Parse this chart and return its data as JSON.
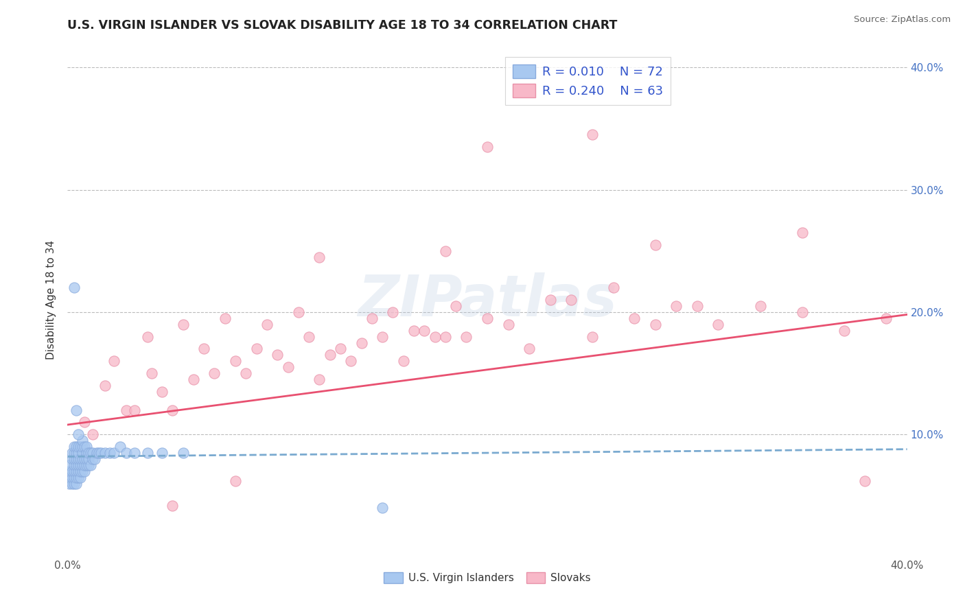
{
  "title": "U.S. VIRGIN ISLANDER VS SLOVAK DISABILITY AGE 18 TO 34 CORRELATION CHART",
  "source": "Source: ZipAtlas.com",
  "ylabel": "Disability Age 18 to 34",
  "xlim": [
    0.0,
    0.4
  ],
  "ylim": [
    0.0,
    0.42
  ],
  "color_vi": "#a8c8f0",
  "color_vi_edge": "#88aadd",
  "color_sk": "#f8b8c8",
  "color_sk_edge": "#e890a8",
  "color_vi_line": "#7aaad0",
  "color_sk_line": "#e85070",
  "background": "#ffffff",
  "grid_color": "#bbbbbb",
  "watermark": "ZIPatlas",
  "vi_scatter_x": [
    0.001,
    0.001,
    0.001,
    0.001,
    0.002,
    0.002,
    0.002,
    0.002,
    0.002,
    0.003,
    0.003,
    0.003,
    0.003,
    0.003,
    0.003,
    0.003,
    0.004,
    0.004,
    0.004,
    0.004,
    0.004,
    0.004,
    0.004,
    0.005,
    0.005,
    0.005,
    0.005,
    0.005,
    0.005,
    0.006,
    0.006,
    0.006,
    0.006,
    0.006,
    0.007,
    0.007,
    0.007,
    0.007,
    0.007,
    0.007,
    0.008,
    0.008,
    0.008,
    0.008,
    0.009,
    0.009,
    0.009,
    0.009,
    0.01,
    0.01,
    0.01,
    0.011,
    0.011,
    0.012,
    0.012,
    0.013,
    0.014,
    0.015,
    0.016,
    0.018,
    0.02,
    0.022,
    0.025,
    0.028,
    0.032,
    0.038,
    0.045,
    0.055,
    0.15,
    0.003,
    0.004,
    0.005
  ],
  "vi_scatter_y": [
    0.06,
    0.065,
    0.07,
    0.075,
    0.06,
    0.065,
    0.07,
    0.08,
    0.085,
    0.06,
    0.065,
    0.07,
    0.075,
    0.08,
    0.085,
    0.09,
    0.06,
    0.065,
    0.07,
    0.075,
    0.08,
    0.085,
    0.09,
    0.065,
    0.07,
    0.075,
    0.08,
    0.085,
    0.09,
    0.065,
    0.07,
    0.075,
    0.08,
    0.09,
    0.07,
    0.075,
    0.08,
    0.085,
    0.09,
    0.095,
    0.07,
    0.075,
    0.08,
    0.09,
    0.075,
    0.08,
    0.085,
    0.09,
    0.075,
    0.08,
    0.085,
    0.075,
    0.085,
    0.08,
    0.085,
    0.08,
    0.085,
    0.085,
    0.085,
    0.085,
    0.085,
    0.085,
    0.09,
    0.085,
    0.085,
    0.085,
    0.085,
    0.085,
    0.04,
    0.22,
    0.12,
    0.1
  ],
  "sk_scatter_x": [
    0.008,
    0.012,
    0.018,
    0.022,
    0.028,
    0.032,
    0.038,
    0.04,
    0.045,
    0.05,
    0.055,
    0.06,
    0.065,
    0.07,
    0.075,
    0.08,
    0.085,
    0.09,
    0.095,
    0.1,
    0.105,
    0.11,
    0.115,
    0.12,
    0.125,
    0.13,
    0.135,
    0.14,
    0.145,
    0.15,
    0.155,
    0.16,
    0.165,
    0.17,
    0.175,
    0.18,
    0.185,
    0.19,
    0.2,
    0.21,
    0.22,
    0.23,
    0.24,
    0.25,
    0.26,
    0.27,
    0.28,
    0.29,
    0.31,
    0.33,
    0.35,
    0.37,
    0.39,
    0.12,
    0.18,
    0.2,
    0.25,
    0.3,
    0.35,
    0.05,
    0.08,
    0.28,
    0.38
  ],
  "sk_scatter_y": [
    0.11,
    0.1,
    0.14,
    0.16,
    0.12,
    0.12,
    0.18,
    0.15,
    0.135,
    0.12,
    0.19,
    0.145,
    0.17,
    0.15,
    0.195,
    0.16,
    0.15,
    0.17,
    0.19,
    0.165,
    0.155,
    0.2,
    0.18,
    0.145,
    0.165,
    0.17,
    0.16,
    0.175,
    0.195,
    0.18,
    0.2,
    0.16,
    0.185,
    0.185,
    0.18,
    0.18,
    0.205,
    0.18,
    0.195,
    0.19,
    0.17,
    0.21,
    0.21,
    0.18,
    0.22,
    0.195,
    0.19,
    0.205,
    0.19,
    0.205,
    0.2,
    0.185,
    0.195,
    0.245,
    0.25,
    0.335,
    0.345,
    0.205,
    0.265,
    0.042,
    0.062,
    0.255,
    0.062
  ],
  "vi_line_x": [
    0.0,
    0.4
  ],
  "vi_line_y": [
    0.082,
    0.088
  ],
  "sk_line_x": [
    0.0,
    0.4
  ],
  "sk_line_y": [
    0.108,
    0.198
  ],
  "legend_r1": "R = 0.010",
  "legend_n1": "N = 72",
  "legend_r2": "R = 0.240",
  "legend_n2": "N = 63"
}
